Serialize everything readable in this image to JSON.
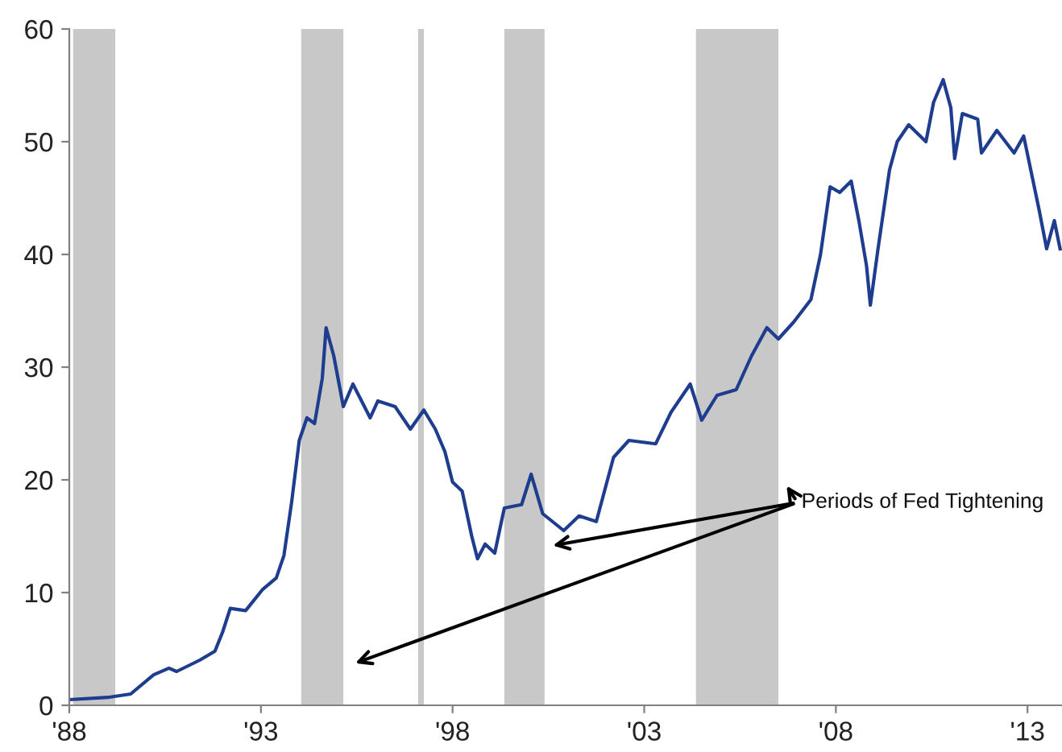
{
  "chart_data": {
    "type": "line",
    "x": [
      1988.0,
      1989.0,
      1989.6,
      1990.2,
      1990.6,
      1990.8,
      1991.4,
      1991.8,
      1992.0,
      1992.2,
      1992.6,
      1993.05,
      1993.4,
      1993.6,
      1993.8,
      1994.0,
      1994.2,
      1994.4,
      1994.6,
      1994.7,
      1994.9,
      1995.15,
      1995.4,
      1995.85,
      1996.05,
      1996.5,
      1996.9,
      1997.25,
      1997.55,
      1997.8,
      1998.0,
      1998.25,
      1998.5,
      1998.65,
      1998.85,
      1999.1,
      1999.35,
      1999.8,
      2000.05,
      2000.35,
      2000.9,
      2001.3,
      2001.75,
      2002.2,
      2002.6,
      2003.3,
      2003.7,
      2004.2,
      2004.5,
      2004.9,
      2005.4,
      2005.8,
      2006.2,
      2006.5,
      2006.9,
      2007.35,
      2007.6,
      2007.85,
      2008.1,
      2008.4,
      2008.6,
      2008.8,
      2008.9,
      2009.1,
      2009.4,
      2009.6,
      2009.9,
      2010.35,
      2010.55,
      2010.8,
      2011.0,
      2011.1,
      2011.3,
      2011.7,
      2011.8,
      2012.2,
      2012.65,
      2012.9,
      2013.3,
      2013.5,
      2013.7,
      2013.85
    ],
    "series": [
      {
        "color": "#1f3d8f",
        "values": [
          0.5,
          0.7,
          1.0,
          2.7,
          3.3,
          3.0,
          4.0,
          4.8,
          6.5,
          8.6,
          8.4,
          10.3,
          11.3,
          13.3,
          18,
          23.5,
          25.5,
          25,
          29,
          33.5,
          31,
          26.5,
          28.5,
          25.5,
          27,
          26.5,
          24.5,
          26.2,
          24.5,
          22.5,
          19.8,
          19,
          15,
          13,
          14.3,
          13.5,
          17.5,
          17.8,
          20.5,
          17,
          15.5,
          16.8,
          16.3,
          22,
          23.5,
          23.2,
          26,
          28.5,
          25.3,
          27.5,
          28,
          31,
          33.5,
          32.5,
          34,
          36,
          40,
          46,
          45.5,
          46.5,
          43,
          39,
          35.5,
          40.5,
          47.5,
          50,
          51.5,
          50,
          53.5,
          55.5,
          53,
          48.5,
          52.5,
          52,
          49,
          51,
          49,
          50.5,
          44,
          40.5,
          43,
          40.5
        ]
      }
    ],
    "xlim": [
      1988,
      2013.9
    ],
    "xticks": [
      {
        "value": 1988,
        "label": "'88"
      },
      {
        "value": 1993,
        "label": "'93"
      },
      {
        "value": 1998,
        "label": "'98"
      },
      {
        "value": 2003,
        "label": "'03"
      },
      {
        "value": 2008,
        "label": "'08"
      },
      {
        "value": 2013,
        "label": "'13"
      }
    ],
    "ylim": [
      0,
      60
    ],
    "yticks": [
      0,
      10,
      20,
      30,
      40,
      50,
      60
    ],
    "bands": [
      {
        "axis": "x",
        "from": 1988.1,
        "to": 1989.2,
        "color": "#c8c8c8"
      },
      {
        "axis": "x",
        "from": 1994.05,
        "to": 1995.15,
        "color": "#c8c8c8"
      },
      {
        "axis": "x",
        "from": 1997.1,
        "to": 1997.25,
        "color": "#c8c8c8"
      },
      {
        "axis": "x",
        "from": 1999.35,
        "to": 2000.4,
        "color": "#c8c8c8"
      },
      {
        "axis": "x",
        "from": 2004.35,
        "to": 2006.5,
        "color": "#c8c8c8"
      }
    ],
    "annotations": [
      "Periods of Fed Tightening"
    ],
    "grid": false,
    "legend": false,
    "marker": "none",
    "line_style": "solid"
  }
}
